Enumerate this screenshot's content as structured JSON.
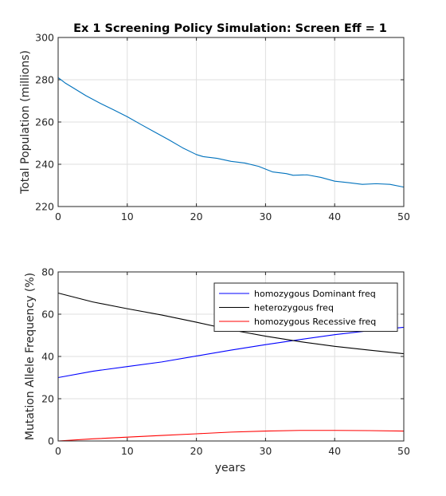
{
  "chart_data": [
    {
      "type": "line",
      "title": "Ex 1 Screening Policy Simulation: Screen Eff = 1",
      "xlabel": "",
      "ylabel": "Total Population (millions)",
      "xlim": [
        0,
        50
      ],
      "ylim": [
        220,
        300
      ],
      "xticks": [
        "0",
        "10",
        "20",
        "30",
        "40",
        "50"
      ],
      "yticks": [
        "220",
        "240",
        "260",
        "280",
        "300"
      ],
      "grid": true,
      "series": [
        {
          "color": "#0072bd",
          "x": [
            0,
            1,
            2,
            4,
            6,
            8,
            10,
            12,
            14,
            16,
            18,
            20,
            21,
            23,
            25,
            27,
            29,
            31,
            33,
            34,
            36,
            38,
            40,
            42,
            44,
            46,
            48,
            50
          ],
          "y": [
            281,
            278.5,
            276.5,
            272.5,
            269,
            265.8,
            262.5,
            258.8,
            255.2,
            251.6,
            247.8,
            244.6,
            243.6,
            242.8,
            241.4,
            240.6,
            239,
            236.4,
            235.6,
            234.8,
            235,
            233.8,
            232,
            231.3,
            230.5,
            230.8,
            230.5,
            229.2
          ]
        }
      ]
    },
    {
      "type": "line",
      "title": "",
      "xlabel": "years",
      "ylabel": "Mutation Allele Frequency (%)",
      "xlim": [
        0,
        50
      ],
      "ylim": [
        0,
        80
      ],
      "xticks": [
        "0",
        "10",
        "20",
        "30",
        "40",
        "50"
      ],
      "yticks": [
        "0",
        "20",
        "40",
        "60",
        "80"
      ],
      "grid": true,
      "legend": "top-right",
      "series": [
        {
          "name": "homozygous Dominant freq",
          "color": "#0000ff",
          "x": [
            0,
            5,
            10,
            15,
            20,
            25,
            30,
            35,
            40,
            45,
            50
          ],
          "y": [
            30,
            33,
            35.2,
            37.4,
            40.2,
            43,
            45.6,
            48,
            50.3,
            52.2,
            53.8
          ]
        },
        {
          "name": "heterozygous freq",
          "color": "#000000",
          "x": [
            0,
            5,
            10,
            15,
            20,
            25,
            30,
            35,
            40,
            45,
            50
          ],
          "y": [
            70,
            65.8,
            62.6,
            59.6,
            56.2,
            52.6,
            49.6,
            47,
            44.8,
            43,
            41.3
          ]
        },
        {
          "name": "homozygous Recessive freq",
          "color": "#ff0000",
          "x": [
            0,
            5,
            10,
            15,
            20,
            25,
            30,
            35,
            40,
            45,
            50
          ],
          "y": [
            0,
            1,
            1.8,
            2.6,
            3.4,
            4.2,
            4.7,
            5,
            5,
            4.9,
            4.7
          ]
        }
      ]
    }
  ]
}
